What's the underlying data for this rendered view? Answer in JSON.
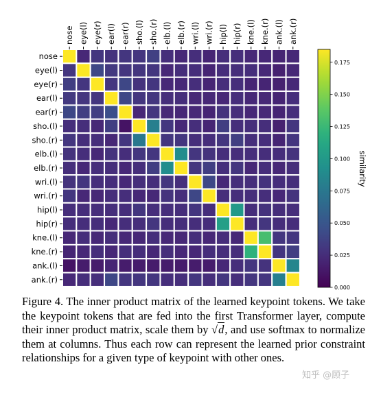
{
  "chart_data": {
    "type": "heatmap",
    "labels": [
      "nose",
      "eye(l)",
      "eye(r)",
      "ear(l)",
      "ear(r)",
      "sho.(l)",
      "sho.(r)",
      "elb.(l)",
      "elb.(r)",
      "wri.(l)",
      "wri.(r)",
      "hip(l)",
      "hip(r)",
      "kne.(l)",
      "kne.(r)",
      "ank.(l)",
      "ank.(r)"
    ],
    "matrix": [
      [
        0.185,
        0.022,
        0.03,
        0.028,
        0.03,
        0.03,
        0.036,
        0.025,
        0.022,
        0.025,
        0.02,
        0.025,
        0.025,
        0.022,
        0.022,
        0.02,
        0.022
      ],
      [
        0.03,
        0.185,
        0.04,
        0.032,
        0.03,
        0.03,
        0.03,
        0.022,
        0.025,
        0.025,
        0.02,
        0.025,
        0.025,
        0.025,
        0.022,
        0.018,
        0.022
      ],
      [
        0.035,
        0.03,
        0.185,
        0.03,
        0.04,
        0.028,
        0.03,
        0.022,
        0.022,
        0.025,
        0.02,
        0.025,
        0.025,
        0.02,
        0.02,
        0.018,
        0.022
      ],
      [
        0.032,
        0.03,
        0.03,
        0.185,
        0.04,
        0.03,
        0.03,
        0.025,
        0.025,
        0.022,
        0.022,
        0.022,
        0.025,
        0.022,
        0.022,
        0.02,
        0.025
      ],
      [
        0.04,
        0.035,
        0.035,
        0.045,
        0.185,
        0.022,
        0.03,
        0.022,
        0.022,
        0.022,
        0.02,
        0.028,
        0.025,
        0.022,
        0.022,
        0.02,
        0.025
      ],
      [
        0.025,
        0.025,
        0.022,
        0.035,
        0.01,
        0.185,
        0.08,
        0.03,
        0.022,
        0.025,
        0.02,
        0.035,
        0.025,
        0.025,
        0.025,
        0.018,
        0.03
      ],
      [
        0.03,
        0.025,
        0.025,
        0.022,
        0.03,
        0.075,
        0.185,
        0.03,
        0.03,
        0.025,
        0.025,
        0.03,
        0.035,
        0.025,
        0.025,
        0.02,
        0.03
      ],
      [
        0.028,
        0.025,
        0.022,
        0.028,
        0.025,
        0.03,
        0.03,
        0.185,
        0.09,
        0.03,
        0.028,
        0.025,
        0.025,
        0.025,
        0.025,
        0.025,
        0.028
      ],
      [
        0.025,
        0.022,
        0.025,
        0.025,
        0.022,
        0.025,
        0.035,
        0.09,
        0.185,
        0.03,
        0.035,
        0.025,
        0.03,
        0.022,
        0.025,
        0.022,
        0.025
      ],
      [
        0.028,
        0.03,
        0.025,
        0.025,
        0.022,
        0.025,
        0.025,
        0.03,
        0.025,
        0.185,
        0.04,
        0.022,
        0.025,
        0.025,
        0.028,
        0.025,
        0.025
      ],
      [
        0.03,
        0.022,
        0.022,
        0.025,
        0.025,
        0.022,
        0.022,
        0.028,
        0.025,
        0.04,
        0.185,
        0.025,
        0.025,
        0.025,
        0.025,
        0.022,
        0.028
      ],
      [
        0.025,
        0.025,
        0.025,
        0.025,
        0.025,
        0.03,
        0.025,
        0.025,
        0.025,
        0.03,
        0.025,
        0.185,
        0.1,
        0.025,
        0.028,
        0.025,
        0.025
      ],
      [
        0.025,
        0.025,
        0.025,
        0.022,
        0.025,
        0.025,
        0.03,
        0.025,
        0.025,
        0.025,
        0.025,
        0.105,
        0.185,
        0.025,
        0.03,
        0.025,
        0.025
      ],
      [
        0.022,
        0.025,
        0.022,
        0.025,
        0.022,
        0.022,
        0.025,
        0.022,
        0.022,
        0.025,
        0.022,
        0.025,
        0.022,
        0.185,
        0.13,
        0.03,
        0.03
      ],
      [
        0.02,
        0.022,
        0.025,
        0.022,
        0.025,
        0.025,
        0.022,
        0.025,
        0.022,
        0.022,
        0.025,
        0.025,
        0.025,
        0.12,
        0.185,
        0.03,
        0.035
      ],
      [
        0.01,
        0.015,
        0.015,
        0.02,
        0.015,
        0.015,
        0.015,
        0.015,
        0.015,
        0.015,
        0.015,
        0.022,
        0.025,
        0.03,
        0.028,
        0.185,
        0.085
      ],
      [
        0.022,
        0.025,
        0.025,
        0.04,
        0.03,
        0.03,
        0.03,
        0.025,
        0.025,
        0.03,
        0.025,
        0.03,
        0.025,
        0.03,
        0.03,
        0.08,
        0.185
      ]
    ],
    "vmin": 0.0,
    "vmax": 0.185,
    "colormap": "viridis",
    "colorbar": {
      "label": "similarity",
      "ticks": [
        "0.000",
        "0.025",
        "0.050",
        "0.075",
        "0.100",
        "0.125",
        "0.150",
        "0.175"
      ]
    },
    "grid_color": "#ffffff"
  },
  "caption": {
    "text_before": "Figure 4. The inner product matrix of the learned keypoint tokens. We take the keypoint tokens that are fed into the first Transformer layer, compute their inner product matrix, scale them by ",
    "sqrt_symbol": "√",
    "sqrt_arg": "d",
    "text_after": ", and use softmax to normalize them at columns.  Thus each row can represent the learned prior constraint relationships for a given type of keypoint with other ones."
  },
  "watermark": "知乎 @顾子"
}
